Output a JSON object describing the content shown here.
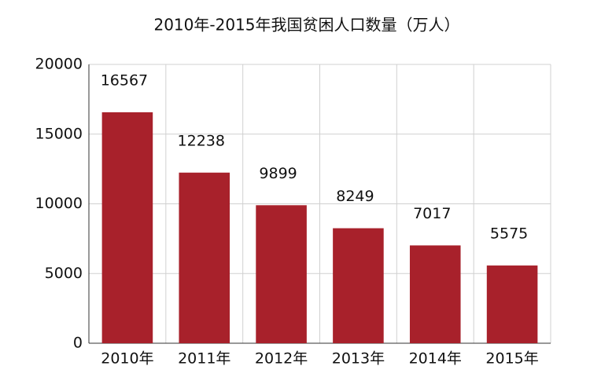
{
  "chart_data": {
    "type": "bar",
    "title": "2010年-2015年我国贫困人口数量（万人）",
    "categories": [
      "2010年",
      "2011年",
      "2012年",
      "2013年",
      "2014年",
      "2015年"
    ],
    "values": [
      16567,
      12238,
      9899,
      8249,
      7017,
      5575
    ],
    "color": "#a8212b",
    "ylim": [
      0,
      20000
    ],
    "yticks": [
      0,
      5000,
      10000,
      15000,
      20000
    ],
    "grid": true
  }
}
